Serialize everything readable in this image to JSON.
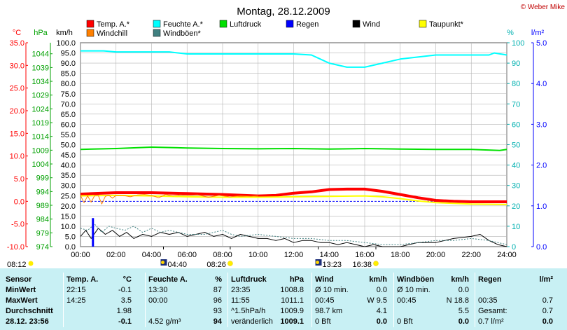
{
  "header": {
    "title": "Montag, 28.12.2009",
    "credit": "© Weber Mike"
  },
  "legend": [
    {
      "label": "Temp. A.*",
      "color": "#ff0000"
    },
    {
      "label": "Feuchte A.*",
      "color": "#00ffff"
    },
    {
      "label": "Luftdruck",
      "color": "#00e000"
    },
    {
      "label": "Regen",
      "color": "#0000ff"
    },
    {
      "label": "Wind",
      "color": "#000000"
    },
    {
      "label": "Taupunkt*",
      "color": "#ffff00"
    },
    {
      "label": "Windchill",
      "color": "#ff8000"
    },
    {
      "label": "Windböen*",
      "color": "#408080"
    }
  ],
  "axis_units": {
    "temp": "°C",
    "pressure": "hPa",
    "wind": "km/h",
    "humidity": "%",
    "rain": "l/m²"
  },
  "chart_data": {
    "type": "line",
    "title": "Montag, 28.12.2009",
    "x_unit": "hour",
    "xlim": [
      0,
      24
    ],
    "x_ticks": [
      "00:00",
      "02:00",
      "04:00",
      "06:00",
      "08:00",
      "10:00",
      "12:00",
      "14:00",
      "16:00",
      "18:00",
      "20:00",
      "22:00",
      "24:00"
    ],
    "axes": {
      "temp_c": {
        "range": [
          -10,
          35
        ],
        "ticks": [
          "35.0",
          "30.0",
          "25.0",
          "20.0",
          "15.0",
          "10.0",
          "5.0",
          "0.0",
          "-5.0",
          "-10.0"
        ]
      },
      "pressure_hpa": {
        "range": [
          974,
          1048
        ],
        "ticks": [
          "1044",
          "1039",
          "1034",
          "1029",
          "1024",
          "1019",
          "1014",
          "1009",
          "1004",
          "999",
          "994",
          "989",
          "984",
          "979",
          "974"
        ]
      },
      "wind_kmh": {
        "range": [
          0,
          100
        ],
        "ticks": [
          "100.0",
          "95.0",
          "90.0",
          "85.0",
          "80.0",
          "75.0",
          "70.0",
          "65.0",
          "60.0",
          "55.0",
          "50.0",
          "45.0",
          "40.0",
          "35.0",
          "30.0",
          "25.0",
          "20.0",
          "15.0",
          "10.0",
          "5.0",
          "0.0"
        ]
      },
      "humidity_pct": {
        "range": [
          0,
          100
        ],
        "ticks": [
          "100",
          "90",
          "80",
          "70",
          "60",
          "50",
          "40",
          "30",
          "20",
          "10",
          "0"
        ]
      },
      "rain_lm2": {
        "range": [
          0,
          5
        ],
        "ticks": [
          "5.0",
          "4.0",
          "3.0",
          "2.0",
          "1.0",
          "0.0"
        ]
      }
    },
    "grid": true,
    "series": [
      {
        "name": "Feuchte A.*",
        "axis": "humidity_pct",
        "color": "#00ffff",
        "x": [
          0,
          1.3,
          2,
          4,
          5,
          6,
          8,
          10,
          12,
          13,
          13.5,
          14,
          15,
          16,
          16.5,
          17,
          18,
          19,
          20,
          21,
          22,
          23,
          23.3,
          24
        ],
        "y": [
          96,
          96,
          95.5,
          95.5,
          95.5,
          94.5,
          94.5,
          94.5,
          94.5,
          94,
          92,
          90,
          88,
          88,
          89,
          90,
          92,
          93,
          94,
          94,
          94,
          94,
          95,
          94
        ]
      },
      {
        "name": "Luftdruck",
        "axis": "pressure_hpa",
        "color": "#00e000",
        "x": [
          0,
          2,
          4,
          6,
          8,
          10,
          12,
          14,
          16,
          18,
          20,
          22,
          23.6,
          24
        ],
        "y": [
          1009.3,
          1009.6,
          1010.1,
          1009.8,
          1009.6,
          1009.5,
          1009.6,
          1009.4,
          1009.6,
          1009.4,
          1009.3,
          1009.3,
          1008.9,
          1009.3
        ]
      },
      {
        "name": "Temp. A.*",
        "axis": "temp_c",
        "color": "#ff0000",
        "x": [
          0,
          2,
          4,
          6,
          8,
          10,
          11,
          12,
          13,
          14,
          15,
          16,
          17,
          18,
          19,
          20,
          21,
          22,
          23,
          24
        ],
        "y": [
          1.6,
          1.9,
          1.9,
          1.7,
          1.5,
          1.2,
          1.3,
          1.8,
          2.1,
          2.6,
          2.7,
          2.7,
          2.2,
          1.5,
          0.8,
          0.2,
          0,
          -0.1,
          -0.1,
          -0.1
        ]
      },
      {
        "name": "Taupunkt*",
        "axis": "temp_c",
        "color": "#ffff00",
        "x": [
          0,
          2,
          4,
          6,
          8,
          10,
          12,
          14,
          16,
          17,
          18,
          19,
          20,
          22,
          24
        ],
        "y": [
          1.2,
          1.3,
          1.2,
          1.0,
          0.9,
          0.9,
          1.0,
          1.1,
          1.2,
          1.0,
          0.6,
          0.1,
          -0.3,
          -0.6,
          -0.7
        ]
      },
      {
        "name": "Windchill",
        "axis": "temp_c",
        "color": "#ff8000",
        "x": [
          0,
          0.2,
          0.4,
          0.6,
          0.8,
          1,
          1.2,
          1.4,
          1.6,
          1.8,
          2,
          2.4,
          2.8,
          3.2,
          3.6,
          4,
          4.4,
          4.8,
          5.2,
          5.6,
          6,
          6.6,
          7.2,
          7.8,
          8.4,
          9,
          9.6,
          10
        ],
        "y": [
          1.3,
          -0.3,
          1.2,
          -0.2,
          1.3,
          1.3,
          -0.6,
          1.1,
          1.3,
          0.7,
          1.3,
          1.3,
          1.0,
          1.4,
          1.5,
          1.3,
          0.8,
          1.5,
          1.2,
          1.4,
          1.3,
          1.4,
          0.9,
          1.3,
          1.0,
          1.2,
          1.1,
          1.2
        ]
      },
      {
        "name": "Wind",
        "axis": "wind_kmh",
        "color": "#000000",
        "x": [
          0,
          0.3,
          0.6,
          1,
          1.4,
          1.8,
          2.2,
          2.6,
          3,
          3.5,
          4,
          4.5,
          5,
          5.5,
          6,
          6.5,
          7,
          7.5,
          8,
          8.5,
          9,
          9.5,
          10,
          10.5,
          11,
          11.5,
          12,
          12.5,
          13,
          13.5,
          14,
          14.5,
          15,
          15.5,
          16,
          16.5,
          17,
          18,
          19,
          20,
          21,
          22,
          22.5,
          23,
          23.5,
          24
        ],
        "y": [
          5,
          8,
          4,
          9,
          6,
          8,
          5,
          7,
          4,
          6,
          5,
          7,
          6,
          7,
          5,
          6,
          7,
          5,
          6,
          4,
          6,
          5,
          4,
          4,
          3,
          4,
          2,
          3,
          3,
          2,
          2,
          1,
          2,
          1,
          0,
          1,
          0,
          0,
          2,
          2,
          4,
          5,
          6,
          3,
          1,
          0
        ]
      },
      {
        "name": "Windböen*",
        "axis": "wind_kmh",
        "color": "#408080",
        "x": [
          0,
          0.4,
          0.8,
          1.2,
          1.6,
          2,
          2.5,
          3,
          3.5,
          4,
          4.5,
          5,
          5.5,
          6,
          7,
          8,
          8.5,
          9,
          10,
          11,
          12,
          13,
          14,
          15,
          16,
          17,
          18,
          19,
          20,
          21,
          22,
          23,
          24
        ],
        "y": [
          9,
          8,
          11,
          7,
          10,
          9,
          8,
          10,
          7,
          9,
          7,
          8,
          7,
          6,
          6,
          8,
          6,
          5,
          6,
          5,
          4,
          4,
          3,
          3,
          2,
          1,
          1,
          2,
          3,
          3,
          4,
          3,
          1
        ]
      }
    ],
    "rain_bars": [
      {
        "x": 0.7,
        "y": 0.7
      }
    ],
    "reference_line": {
      "axis": "temp_c",
      "value": 0,
      "color": "#0000ff"
    }
  },
  "events": {
    "sunrise": "08:12",
    "sunset": "16:38",
    "moonrise": "04:40",
    "moonset": "13:23",
    "dawn": "08:26"
  },
  "table": {
    "headers": [
      "Sensor",
      "Temp. A.",
      "°C",
      "Feuchte A.",
      "%",
      "Luftdruck",
      "hPa",
      "Wind",
      "km/h",
      "Windböen",
      "km/h",
      "Regen",
      "l/m²"
    ],
    "rows": [
      {
        "label": "MinWert",
        "temp_time": "22:15",
        "temp_val": "-0.1",
        "hum_time": "13:30",
        "hum_val": "87",
        "press_time": "23:35",
        "press_val": "1008.8",
        "wind_info": "Ø 10 min.",
        "wind_val": "0.0",
        "gust_info": "Ø 10 min.",
        "gust_val": "0.0",
        "rain_info": "",
        "rain_val": ""
      },
      {
        "label": "MaxWert",
        "temp_time": "14:25",
        "temp_val": "3.5",
        "hum_time": "00:00",
        "hum_val": "96",
        "press_time": "11:55",
        "press_val": "1011.1",
        "wind_info": "00:45",
        "wind_val": "W 9.5",
        "gust_info": "00:45",
        "gust_val": "N 18.8",
        "rain_info": "00:35",
        "rain_val": "0.7"
      },
      {
        "label": "Durchschnitt",
        "temp_time": "",
        "temp_val": "1.98",
        "hum_time": "",
        "hum_val": "93",
        "press_time": "^1.5hPa/h",
        "press_val": "1009.9",
        "wind_info": "98.7 km",
        "wind_val": "4.1",
        "gust_info": "",
        "gust_val": "5.5",
        "rain_info": "Gesamt:",
        "rain_val": "0.7"
      },
      {
        "label": "28.12. 23:56",
        "temp_time": "",
        "temp_val": "-0.1",
        "hum_time": "4.52 g/m³",
        "hum_val": "94",
        "press_time": "veränderlich",
        "press_val": "1009.1",
        "wind_info": "0 Bft",
        "wind_val": "0.0",
        "gust_info": "0 Bft",
        "gust_val": "0.0",
        "rain_info": "0.7 l/m²",
        "rain_val": "0.0"
      }
    ]
  }
}
